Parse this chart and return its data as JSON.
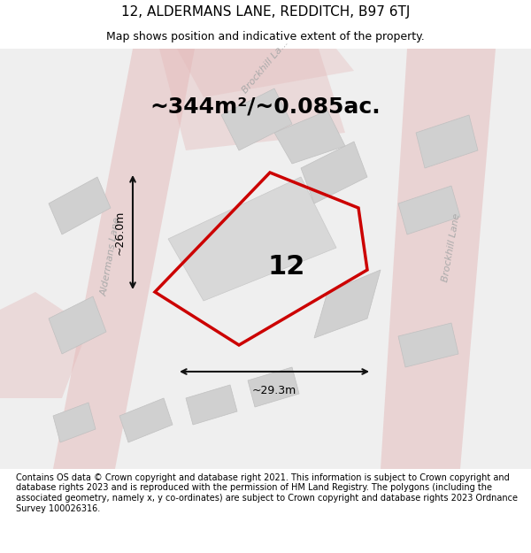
{
  "title": "12, ALDERMANS LANE, REDDITCH, B97 6TJ",
  "subtitle": "Map shows position and indicative extent of the property.",
  "area_text": "~344m²/~0.085ac.",
  "property_number": "12",
  "dim_height": "~26.0m",
  "dim_width": "~29.3m",
  "footer_text": "Contains OS data © Crown copyright and database right 2021. This information is subject to Crown copyright and database rights 2023 and is reproduced with the permission of HM Land Registry. The polygons (including the associated geometry, namely x, y co-ordinates) are subject to Crown copyright and database rights 2023 Ordnance Survey 100026316.",
  "bg_color": "#f5f5f5",
  "map_bg": "#f0f0f0",
  "road_color": "#e8c8c8",
  "building_color": "#d8d8d8",
  "property_outline_color": "#cc0000",
  "dim_line_color": "#111111",
  "street_label_color": "#aaaaaa",
  "title_fontsize": 11,
  "subtitle_fontsize": 9,
  "area_fontsize": 18,
  "number_fontsize": 22,
  "dim_fontsize": 9,
  "footer_fontsize": 7
}
